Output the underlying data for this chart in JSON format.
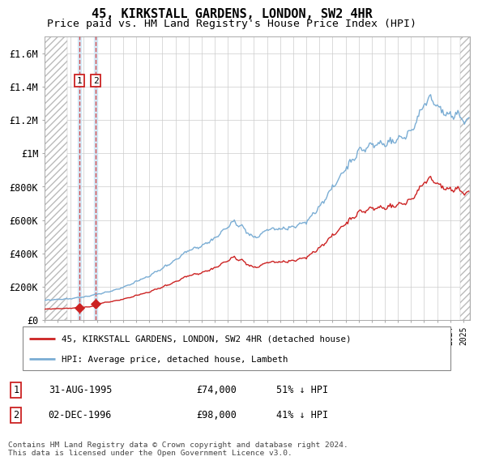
{
  "title": "45, KIRKSTALL GARDENS, LONDON, SW2 4HR",
  "subtitle": "Price paid vs. HM Land Registry's House Price Index (HPI)",
  "title_fontsize": 11,
  "subtitle_fontsize": 9.5,
  "legend_line1": "45, KIRKSTALL GARDENS, LONDON, SW2 4HR (detached house)",
  "legend_line2": "HPI: Average price, detached house, Lambeth",
  "footer": "Contains HM Land Registry data © Crown copyright and database right 2024.\nThis data is licensed under the Open Government Licence v3.0.",
  "transaction1_label": "1",
  "transaction1_date": "31-AUG-1995",
  "transaction1_price": "£74,000",
  "transaction1_hpi": "51% ↓ HPI",
  "transaction1_year": 1995.67,
  "transaction1_value": 74000,
  "transaction2_label": "2",
  "transaction2_date": "02-DEC-1996",
  "transaction2_price": "£98,000",
  "transaction2_hpi": "41% ↓ HPI",
  "transaction2_year": 1996.92,
  "transaction2_value": 98000,
  "price_color": "#cc2222",
  "hpi_line_color": "#7aadd4",
  "ylim_min": 0,
  "ylim_max": 1700000,
  "yticks": [
    0,
    200000,
    400000,
    600000,
    800000,
    1000000,
    1200000,
    1400000,
    1600000
  ],
  "ytick_labels": [
    "£0",
    "£200K",
    "£400K",
    "£600K",
    "£800K",
    "£1M",
    "£1.2M",
    "£1.4M",
    "£1.6M"
  ],
  "xmin": 1993.0,
  "xmax": 2025.5,
  "hatch_left_end": 1994.75,
  "hatch_right_start": 2024.75,
  "shade_t1_x": 1995.67,
  "shade_t2_x": 1996.92
}
